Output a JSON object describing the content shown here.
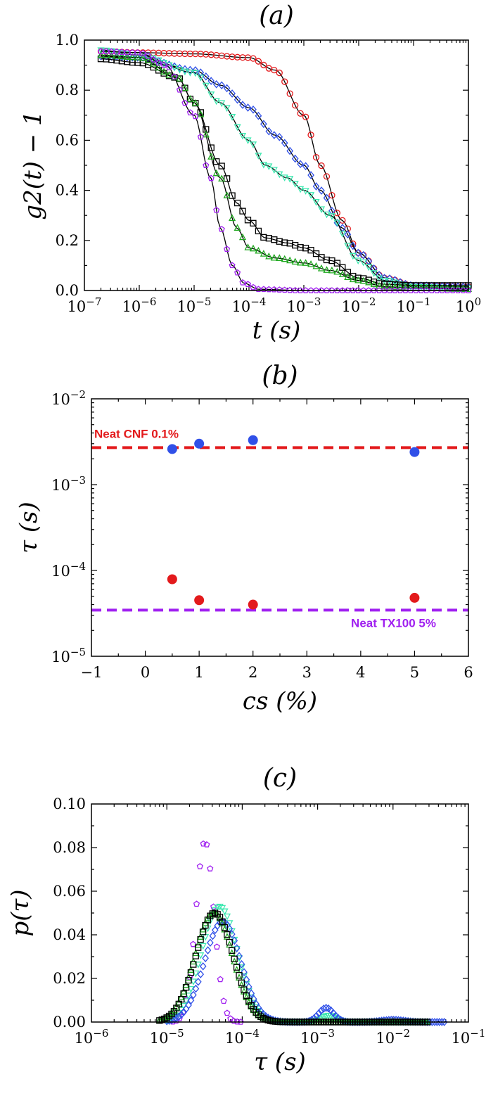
{
  "colors": {
    "red": "#e31a1c",
    "blue": "#3050e8",
    "cyan": "#3ee8b0",
    "green": "#1fa81f",
    "black": "#000000",
    "purple": "#a020f0"
  },
  "chart_data": [
    {
      "type": "scatter",
      "panel_label": "(a)",
      "xlabel": "t (s)",
      "ylabel": "g2(t) − 1",
      "xscale": "log",
      "xlim": [
        1e-07,
        1
      ],
      "ylim": [
        0,
        1.0
      ],
      "x_ticks": [
        "10-7",
        "10-6",
        "10-5",
        "10-4",
        "10-3",
        "10-2",
        "10-1",
        "100"
      ],
      "y_ticks": [
        "0.0",
        "0.2",
        "0.4",
        "0.6",
        "0.8",
        "1.0"
      ],
      "grid": false,
      "series": [
        {
          "color": "red",
          "marker": "circle",
          "fit": true,
          "points": [
            [
              2e-07,
              0.955
            ],
            [
              1e-06,
              0.95
            ],
            [
              1e-05,
              0.945
            ],
            [
              0.0001,
              0.93
            ],
            [
              0.0003,
              0.88
            ],
            [
              0.001,
              0.7
            ],
            [
              0.002,
              0.5
            ],
            [
              0.005,
              0.28
            ],
            [
              0.01,
              0.15
            ],
            [
              0.03,
              0.05
            ],
            [
              0.1,
              0.02
            ],
            [
              1,
              0.015
            ]
          ]
        },
        {
          "color": "blue",
          "marker": "diamond",
          "fit": true,
          "points": [
            [
              2e-07,
              0.935
            ],
            [
              1e-06,
              0.93
            ],
            [
              1e-05,
              0.88
            ],
            [
              3e-05,
              0.82
            ],
            [
              0.0001,
              0.73
            ],
            [
              0.0003,
              0.62
            ],
            [
              0.001,
              0.5
            ],
            [
              0.002,
              0.4
            ],
            [
              0.005,
              0.25
            ],
            [
              0.01,
              0.15
            ],
            [
              0.03,
              0.05
            ],
            [
              0.1,
              0.02
            ],
            [
              1,
              0.015
            ]
          ]
        },
        {
          "color": "cyan",
          "marker": "triangle-down",
          "fit": true,
          "points": [
            [
              2e-07,
              0.96
            ],
            [
              1e-06,
              0.94
            ],
            [
              1e-05,
              0.87
            ],
            [
              3e-05,
              0.75
            ],
            [
              0.0001,
              0.6
            ],
            [
              0.0002,
              0.5
            ],
            [
              0.0005,
              0.45
            ],
            [
              0.001,
              0.4
            ],
            [
              0.003,
              0.3
            ],
            [
              0.01,
              0.12
            ],
            [
              0.03,
              0.04
            ],
            [
              0.1,
              0.015
            ],
            [
              1,
              0.01
            ]
          ]
        },
        {
          "color": "black",
          "marker": "square",
          "fit": true,
          "points": [
            [
              2e-07,
              0.925
            ],
            [
              1e-06,
              0.91
            ],
            [
              5e-06,
              0.85
            ],
            [
              1e-05,
              0.75
            ],
            [
              3e-05,
              0.5
            ],
            [
              6e-05,
              0.35
            ],
            [
              0.0001,
              0.28
            ],
            [
              0.0002,
              0.21
            ],
            [
              0.0005,
              0.19
            ],
            [
              0.001,
              0.17
            ],
            [
              0.003,
              0.12
            ],
            [
              0.01,
              0.05
            ],
            [
              0.03,
              0.025
            ],
            [
              0.1,
              0.02
            ],
            [
              1,
              0.02
            ]
          ]
        },
        {
          "color": "green",
          "marker": "triangle-up",
          "fit": true,
          "points": [
            [
              2e-07,
              0.94
            ],
            [
              1e-06,
              0.93
            ],
            [
              5e-06,
              0.85
            ],
            [
              1e-05,
              0.75
            ],
            [
              3e-05,
              0.45
            ],
            [
              6e-05,
              0.25
            ],
            [
              0.0001,
              0.17
            ],
            [
              0.0003,
              0.13
            ],
            [
              0.001,
              0.11
            ],
            [
              0.003,
              0.08
            ],
            [
              0.01,
              0.04
            ],
            [
              0.03,
              0.015
            ],
            [
              0.1,
              0.01
            ],
            [
              1,
              0.005
            ]
          ]
        },
        {
          "color": "purple",
          "marker": "pentagon",
          "fit": true,
          "points": [
            [
              2e-07,
              0.955
            ],
            [
              1e-06,
              0.95
            ],
            [
              3e-06,
              0.9
            ],
            [
              1e-05,
              0.7
            ],
            [
              2e-05,
              0.45
            ],
            [
              3e-05,
              0.25
            ],
            [
              5e-05,
              0.1
            ],
            [
              8e-05,
              0.03
            ],
            [
              0.00015,
              0.005
            ],
            [
              0.001,
              0.0
            ],
            [
              0.01,
              0.0
            ],
            [
              1,
              0.0
            ]
          ]
        }
      ]
    },
    {
      "type": "scatter",
      "panel_label": "(b)",
      "xlabel": "cs (%)",
      "ylabel": "τ (s)",
      "yscale": "log",
      "xlim": [
        -1,
        6
      ],
      "ylim": [
        1e-05,
        0.01
      ],
      "x_ticks": [
        "−1",
        "0",
        "1",
        "2",
        "3",
        "4",
        "5",
        "6"
      ],
      "y_ticks": [
        "10-5",
        "10-4",
        "10-3",
        "10-2"
      ],
      "grid": false,
      "series": [
        {
          "color": "blue",
          "marker": "circle",
          "x": [
            0.5,
            1,
            2,
            5
          ],
          "y": [
            0.0026,
            0.003,
            0.0033,
            0.0024
          ]
        },
        {
          "color": "red",
          "marker": "circle",
          "x": [
            0.5,
            1,
            2,
            5
          ],
          "y": [
            7.9e-05,
            4.5e-05,
            4e-05,
            4.8e-05
          ]
        }
      ],
      "reference_lines": [
        {
          "label": "Neat CNF 0.1%",
          "y": 0.0027,
          "color": "red"
        },
        {
          "label": "Neat TX100 5%",
          "y": 3.45e-05,
          "color": "purple"
        }
      ]
    },
    {
      "type": "scatter",
      "panel_label": "(c)",
      "xlabel": "τ (s)",
      "ylabel": "p(τ)",
      "xscale": "log",
      "xlim": [
        1e-06,
        0.1
      ],
      "ylim": [
        0,
        0.1
      ],
      "x_ticks": [
        "10-6",
        "10-5",
        "10-4",
        "10-3",
        "10-2",
        "10-1"
      ],
      "y_ticks": [
        "0.00",
        "0.02",
        "0.04",
        "0.06",
        "0.08",
        "0.10"
      ],
      "grid": false,
      "series": [
        {
          "color": "purple",
          "marker": "pentagon",
          "peaks": [
            {
              "center": 3.2e-05,
              "height": 0.083,
              "width": 0.12
            }
          ],
          "range": [
            1.2e-05,
            0.0001
          ]
        },
        {
          "color": "cyan",
          "marker": "triangle-down",
          "peaks": [
            {
              "center": 5e-05,
              "height": 0.053,
              "width": 0.24
            },
            {
              "center": 0.0014,
              "height": 0.003,
              "width": 0.1
            }
          ],
          "range": [
            1e-05,
            0.03
          ]
        },
        {
          "color": "blue",
          "marker": "diamond",
          "peaks": [
            {
              "center": 5.5e-05,
              "height": 0.046,
              "width": 0.24
            },
            {
              "center": 0.0013,
              "height": 0.0065,
              "width": 0.1
            },
            {
              "center": 0.01,
              "height": 0.001,
              "width": 0.15
            }
          ],
          "range": [
            1e-05,
            0.05
          ]
        },
        {
          "color": "green",
          "marker": "triangle-up",
          "peaks": [
            {
              "center": 4.2e-05,
              "height": 0.05,
              "width": 0.25
            }
          ],
          "range": [
            8e-06,
            0.03
          ]
        },
        {
          "color": "black",
          "marker": "square",
          "peaks": [
            {
              "center": 4.3e-05,
              "height": 0.05,
              "width": 0.25
            }
          ],
          "range": [
            8e-06,
            0.03
          ]
        }
      ]
    }
  ]
}
